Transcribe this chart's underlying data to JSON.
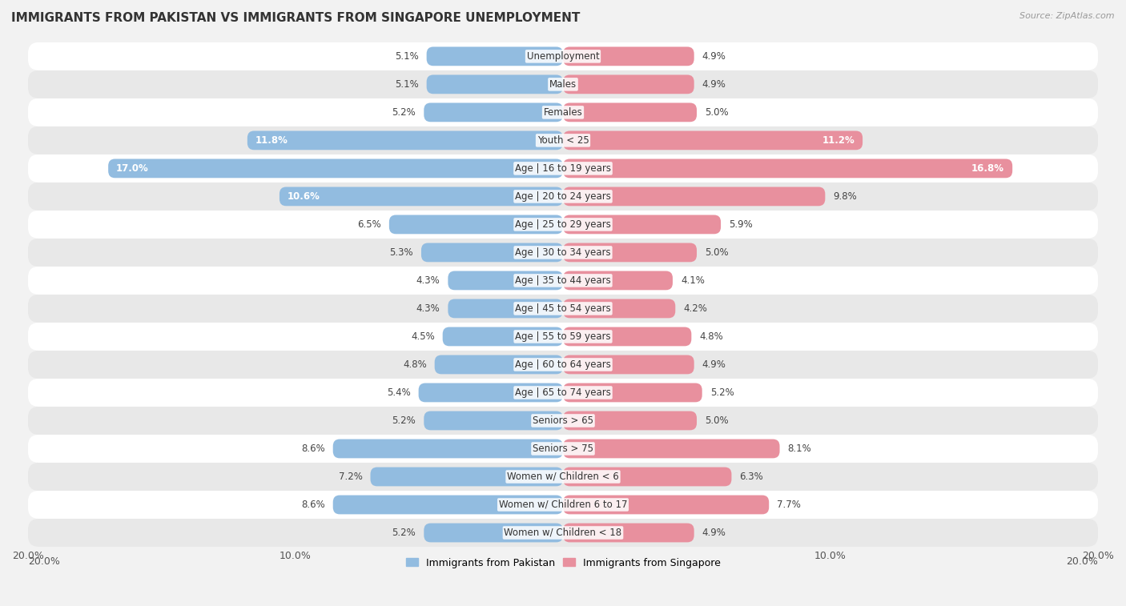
{
  "title": "IMMIGRANTS FROM PAKISTAN VS IMMIGRANTS FROM SINGAPORE UNEMPLOYMENT",
  "source": "Source: ZipAtlas.com",
  "categories": [
    "Unemployment",
    "Males",
    "Females",
    "Youth < 25",
    "Age | 16 to 19 years",
    "Age | 20 to 24 years",
    "Age | 25 to 29 years",
    "Age | 30 to 34 years",
    "Age | 35 to 44 years",
    "Age | 45 to 54 years",
    "Age | 55 to 59 years",
    "Age | 60 to 64 years",
    "Age | 65 to 74 years",
    "Seniors > 65",
    "Seniors > 75",
    "Women w/ Children < 6",
    "Women w/ Children 6 to 17",
    "Women w/ Children < 18"
  ],
  "pakistan_values": [
    5.1,
    5.1,
    5.2,
    11.8,
    17.0,
    10.6,
    6.5,
    5.3,
    4.3,
    4.3,
    4.5,
    4.8,
    5.4,
    5.2,
    8.6,
    7.2,
    8.6,
    5.2
  ],
  "singapore_values": [
    4.9,
    4.9,
    5.0,
    11.2,
    16.8,
    9.8,
    5.9,
    5.0,
    4.1,
    4.2,
    4.8,
    4.9,
    5.2,
    5.0,
    8.1,
    6.3,
    7.7,
    4.9
  ],
  "pakistan_color": "#92bce0",
  "singapore_color": "#e8909e",
  "background_color": "#f2f2f2",
  "row_color_light": "#ffffff",
  "row_color_dark": "#e8e8e8",
  "max_value": 20.0,
  "label_pakistan": "Immigrants from Pakistan",
  "label_singapore": "Immigrants from Singapore"
}
